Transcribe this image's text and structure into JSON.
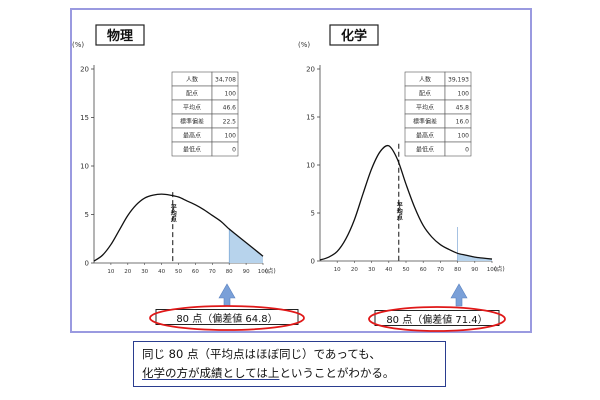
{
  "chart_data": [
    {
      "type": "area",
      "title": "物理",
      "ylabel": "(%)",
      "xlabel": "(点)",
      "y_ticks": [
        0,
        5,
        10,
        15,
        20
      ],
      "x_ticks": [
        10,
        20,
        30,
        40,
        50,
        60,
        70,
        80,
        90,
        100
      ],
      "ylim": [
        0,
        20
      ],
      "xlim": [
        0,
        100
      ],
      "mean_label": "平均点",
      "highlight_from": 80,
      "curve": {
        "x": [
          0,
          5,
          10,
          15,
          20,
          25,
          30,
          35,
          40,
          45,
          50,
          55,
          60,
          65,
          70,
          75,
          80,
          85,
          90,
          95,
          100
        ],
        "y": [
          0.2,
          0.8,
          1.9,
          3.4,
          4.9,
          6.0,
          6.7,
          7.0,
          7.1,
          7.0,
          6.8,
          6.4,
          6.0,
          5.5,
          4.9,
          4.3,
          3.5,
          2.8,
          2.1,
          1.4,
          0.7
        ]
      },
      "stats": [
        {
          "label": "人数",
          "value": "34,708"
        },
        {
          "label": "配点",
          "value": "100"
        },
        {
          "label": "平均点",
          "value": "46.6"
        },
        {
          "label": "標準偏差",
          "value": "22.5"
        },
        {
          "label": "最高点",
          "value": "100"
        },
        {
          "label": "最低点",
          "value": "0"
        }
      ],
      "callout": "80 点（偏差値 64.8）"
    },
    {
      "type": "area",
      "title": "化学",
      "ylabel": "(%)",
      "xlabel": "(点)",
      "y_ticks": [
        0,
        5,
        10,
        15,
        20
      ],
      "x_ticks": [
        10,
        20,
        30,
        40,
        50,
        60,
        70,
        80,
        90,
        100
      ],
      "ylim": [
        0,
        20
      ],
      "xlim": [
        0,
        100
      ],
      "mean_label": "平均点",
      "highlight_from": 80,
      "curve": {
        "x": [
          0,
          5,
          10,
          15,
          20,
          25,
          30,
          35,
          40,
          45,
          50,
          55,
          60,
          65,
          70,
          75,
          80,
          85,
          90,
          95,
          100
        ],
        "y": [
          0.1,
          0.4,
          1.0,
          2.3,
          4.3,
          7.0,
          9.6,
          11.4,
          12.0,
          10.6,
          8.0,
          5.6,
          3.7,
          2.5,
          1.7,
          1.2,
          0.8,
          0.6,
          0.4,
          0.3,
          0.2
        ]
      },
      "stats": [
        {
          "label": "人数",
          "value": "39,193"
        },
        {
          "label": "配点",
          "value": "100"
        },
        {
          "label": "平均点",
          "value": "45.8"
        },
        {
          "label": "標準偏差",
          "value": "16.0"
        },
        {
          "label": "最高点",
          "value": "100"
        },
        {
          "label": "最低点",
          "value": "0"
        }
      ],
      "callout": "80 点（偏差値 71.4）"
    }
  ],
  "note": {
    "line1": "同じ 80 点（平均点はほぼ同じ）であっても、",
    "line2_underlined": "化学の方が成績としては上",
    "line2_rest": "ということがわかる。"
  },
  "colors": {
    "frame": "#9a9ae0",
    "highlight": "#b7d3ec",
    "arrow": "#7aa0d8",
    "callout_oval": "#e01818",
    "note_border": "#2a3d8f"
  }
}
